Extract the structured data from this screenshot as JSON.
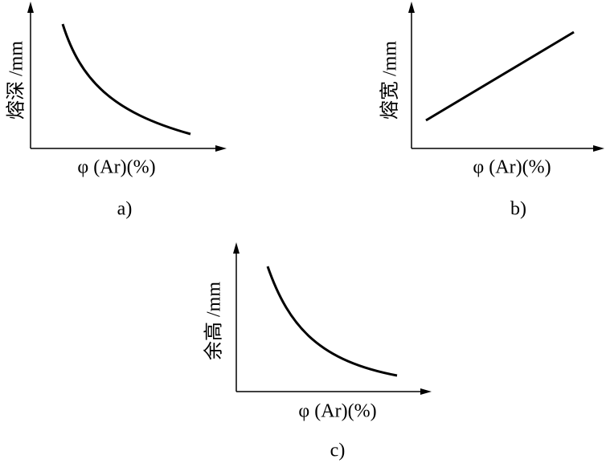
{
  "panels": [
    {
      "y_label": "熔深 /mm",
      "x_label": "φ (Ar)(%)",
      "caption": "a)"
    },
    {
      "y_label": "熔宽 /mm",
      "x_label": "φ (Ar)(%)",
      "caption": "b)"
    },
    {
      "y_label": "余高 /mm",
      "x_label": "φ (Ar)(%)",
      "caption": "c)"
    }
  ]
}
